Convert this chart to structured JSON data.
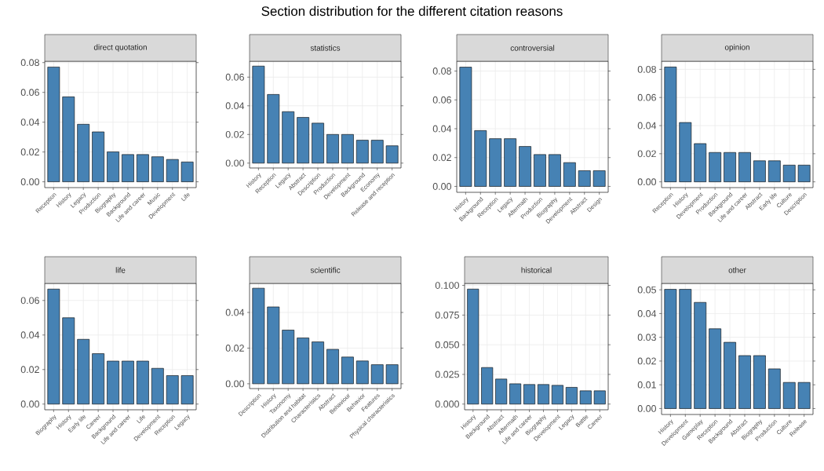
{
  "chart_data": [
    {
      "type": "bar",
      "title": "direct quotation",
      "annotations": [
        "Section distribution for the different citation reasons"
      ],
      "color": "#4682b4",
      "grid": true,
      "categories": [
        "Reception",
        "History",
        "Legacy",
        "Production",
        "Biography",
        "Background",
        "Life and career",
        "Music",
        "Development",
        "Life"
      ],
      "values": [
        0.077,
        0.057,
        0.0386,
        0.0335,
        0.0201,
        0.0183,
        0.0183,
        0.0168,
        0.015,
        0.0133
      ],
      "ylim": [
        -0.0039,
        0.0809
      ],
      "yticks": [
        {
          "value": 0,
          "label": "0.00"
        },
        {
          "value": 0.02,
          "label": "0.02"
        },
        {
          "value": 0.04,
          "label": "0.04"
        },
        {
          "value": 0.06,
          "label": "0.06"
        },
        {
          "value": 0.08,
          "label": "0.08"
        }
      ]
    },
    {
      "type": "bar",
      "title": "statistics",
      "color": "#4682b4",
      "grid": true,
      "categories": [
        "History",
        "Reception",
        "Legacy",
        "Abstract",
        "Description",
        "Production",
        "Development",
        "Background",
        "Economy",
        "Release and reception"
      ],
      "values": [
        0.0677,
        0.0479,
        0.0359,
        0.0319,
        0.0279,
        0.02,
        0.02,
        0.016,
        0.016,
        0.0121
      ],
      "ylim": [
        -0.0034,
        0.0711
      ],
      "yticks": [
        {
          "value": 0,
          "label": "0.00"
        },
        {
          "value": 0.02,
          "label": "0.02"
        },
        {
          "value": 0.04,
          "label": "0.04"
        },
        {
          "value": 0.06,
          "label": "0.06"
        }
      ]
    },
    {
      "type": "bar",
      "title": "controversial",
      "color": "#4682b4",
      "grid": true,
      "categories": [
        "History",
        "Background",
        "Reception",
        "Legacy",
        "Aftermath",
        "Production",
        "Biography",
        "Development",
        "Abstract",
        "Design"
      ],
      "values": [
        0.0827,
        0.0387,
        0.0331,
        0.0331,
        0.0277,
        0.0221,
        0.0221,
        0.0165,
        0.0109,
        0.0109
      ],
      "ylim": [
        -0.0041,
        0.0868
      ],
      "yticks": [
        {
          "value": 0,
          "label": "0.00"
        },
        {
          "value": 0.02,
          "label": "0.02"
        },
        {
          "value": 0.04,
          "label": "0.04"
        },
        {
          "value": 0.06,
          "label": "0.06"
        },
        {
          "value": 0.08,
          "label": "0.08"
        }
      ]
    },
    {
      "type": "bar",
      "title": "opinion",
      "color": "#4682b4",
      "grid": true,
      "categories": [
        "Reception",
        "History",
        "Development",
        "Production",
        "Background",
        "Life and career",
        "Abstract",
        "Early life",
        "Culture",
        "Description"
      ],
      "values": [
        0.0817,
        0.0422,
        0.0272,
        0.0209,
        0.0209,
        0.0209,
        0.015,
        0.015,
        0.0119,
        0.0119
      ],
      "ylim": [
        -0.0041,
        0.0858
      ],
      "yticks": [
        {
          "value": 0,
          "label": "0.00"
        },
        {
          "value": 0.02,
          "label": "0.02"
        },
        {
          "value": 0.04,
          "label": "0.04"
        },
        {
          "value": 0.06,
          "label": "0.06"
        },
        {
          "value": 0.08,
          "label": "0.08"
        }
      ]
    },
    {
      "type": "bar",
      "title": "life",
      "color": "#4682b4",
      "grid": true,
      "categories": [
        "Biography",
        "History",
        "Early life",
        "Career",
        "Background",
        "Life and career",
        "Life",
        "Development",
        "Reception",
        "Legacy"
      ],
      "values": [
        0.0666,
        0.05,
        0.0375,
        0.0292,
        0.0249,
        0.0249,
        0.0249,
        0.0207,
        0.0165,
        0.0165
      ],
      "ylim": [
        -0.0033,
        0.0699
      ],
      "yticks": [
        {
          "value": 0,
          "label": "0.00"
        },
        {
          "value": 0.02,
          "label": "0.02"
        },
        {
          "value": 0.04,
          "label": "0.04"
        },
        {
          "value": 0.06,
          "label": "0.06"
        }
      ]
    },
    {
      "type": "bar",
      "title": "scientific",
      "color": "#4682b4",
      "grid": true,
      "categories": [
        "Description",
        "History",
        "Taxonomy",
        "Distribution and habitat",
        "Characteristics",
        "Abstract",
        "Behaviour",
        "Behavior",
        "Features",
        "Physical characteristics"
      ],
      "values": [
        0.0536,
        0.0431,
        0.0301,
        0.0257,
        0.0235,
        0.0193,
        0.015,
        0.0128,
        0.0107,
        0.0107
      ],
      "ylim": [
        -0.0027,
        0.0563
      ],
      "yticks": [
        {
          "value": 0,
          "label": "0.00"
        },
        {
          "value": 0.02,
          "label": "0.02"
        },
        {
          "value": 0.04,
          "label": "0.04"
        }
      ]
    },
    {
      "type": "bar",
      "title": "historical",
      "color": "#4682b4",
      "grid": true,
      "categories": [
        "History",
        "Background",
        "Abstract",
        "Aftermath",
        "Life and career",
        "Biography",
        "Development",
        "Legacy",
        "Battle",
        "Career"
      ],
      "values": [
        0.0969,
        0.0308,
        0.0211,
        0.0171,
        0.0165,
        0.0165,
        0.0158,
        0.0141,
        0.0112,
        0.0112
      ],
      "ylim": [
        -0.0048,
        0.1017
      ],
      "yticks": [
        {
          "value": 0,
          "label": "0.000"
        },
        {
          "value": 0.025,
          "label": "0.025"
        },
        {
          "value": 0.05,
          "label": "0.050"
        },
        {
          "value": 0.075,
          "label": "0.075"
        },
        {
          "value": 0.1,
          "label": "0.100"
        }
      ]
    },
    {
      "type": "bar",
      "title": "other",
      "color": "#4682b4",
      "grid": true,
      "categories": [
        "History",
        "Development",
        "Gameplay",
        "Reception",
        "Background",
        "Abstract",
        "Biography",
        "Production",
        "Culture",
        "Release"
      ],
      "values": [
        0.0502,
        0.0502,
        0.0447,
        0.0336,
        0.0279,
        0.0223,
        0.0223,
        0.0167,
        0.011,
        0.011
      ],
      "ylim": [
        -0.0025,
        0.0527
      ],
      "yticks": [
        {
          "value": 0,
          "label": "0.00"
        },
        {
          "value": 0.01,
          "label": "0.01"
        },
        {
          "value": 0.02,
          "label": "0.02"
        },
        {
          "value": 0.03,
          "label": "0.03"
        },
        {
          "value": 0.04,
          "label": "0.04"
        },
        {
          "value": 0.05,
          "label": "0.05"
        }
      ]
    }
  ]
}
